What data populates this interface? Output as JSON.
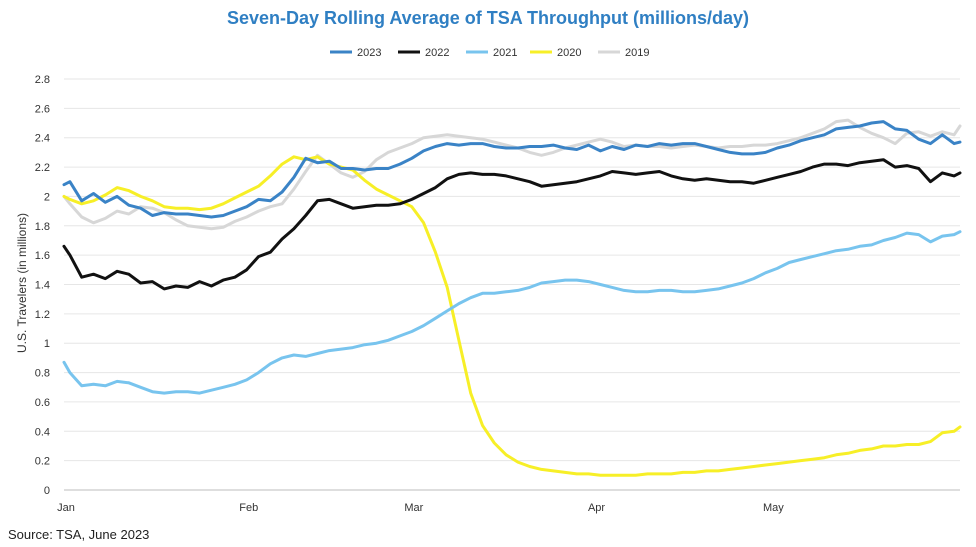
{
  "chart_data": {
    "type": "line",
    "title": "Seven-Day Rolling Average of TSA Throughput (millions/day)",
    "ylabel": "U.S. Travelers (in millions)",
    "xlabel": "",
    "source": "Source: TSA, June 2023",
    "ylim": [
      0,
      2.8
    ],
    "yticks": [
      0,
      0.2,
      0.4,
      0.6,
      0.8,
      1,
      1.2,
      1.4,
      1.6,
      1.8,
      2,
      2.2,
      2.4,
      2.6,
      2.8
    ],
    "xlim": [
      1,
      153
    ],
    "xticks": [
      {
        "label": "Jan",
        "day": 1
      },
      {
        "label": "Feb",
        "day": 32
      },
      {
        "label": "Mar",
        "day": 60
      },
      {
        "label": "Apr",
        "day": 91
      },
      {
        "label": "May",
        "day": 121
      }
    ],
    "grid": true,
    "legend_position": "top-center",
    "series": [
      {
        "name": "2023",
        "color": "#3a83c6",
        "x": [
          1,
          2,
          4,
          6,
          8,
          10,
          12,
          14,
          16,
          18,
          20,
          22,
          24,
          26,
          28,
          30,
          32,
          34,
          36,
          38,
          40,
          42,
          44,
          46,
          48,
          50,
          52,
          54,
          56,
          58,
          60,
          62,
          64,
          66,
          68,
          70,
          72,
          74,
          76,
          78,
          80,
          82,
          84,
          86,
          88,
          90,
          92,
          94,
          96,
          98,
          100,
          102,
          104,
          106,
          108,
          110,
          112,
          114,
          116,
          118,
          120,
          122,
          124,
          126,
          128,
          130,
          132,
          134,
          136,
          138,
          140,
          142,
          144,
          146,
          148,
          150,
          152,
          153
        ],
        "values": [
          2.08,
          2.1,
          1.97,
          2.02,
          1.96,
          2.0,
          1.94,
          1.92,
          1.87,
          1.89,
          1.88,
          1.88,
          1.87,
          1.86,
          1.87,
          1.9,
          1.93,
          1.98,
          1.97,
          2.03,
          2.13,
          2.26,
          2.23,
          2.24,
          2.19,
          2.19,
          2.18,
          2.19,
          2.19,
          2.22,
          2.26,
          2.31,
          2.34,
          2.36,
          2.35,
          2.36,
          2.36,
          2.34,
          2.33,
          2.33,
          2.34,
          2.34,
          2.35,
          2.33,
          2.32,
          2.35,
          2.31,
          2.34,
          2.32,
          2.35,
          2.34,
          2.36,
          2.35,
          2.36,
          2.36,
          2.34,
          2.32,
          2.3,
          2.29,
          2.29,
          2.3,
          2.33,
          2.35,
          2.38,
          2.4,
          2.42,
          2.46,
          2.47,
          2.48,
          2.5,
          2.51,
          2.46,
          2.45,
          2.39,
          2.36,
          2.42,
          2.36,
          2.37
        ]
      },
      {
        "name": "2022",
        "color": "#111111",
        "x": [
          1,
          2,
          4,
          6,
          8,
          10,
          12,
          14,
          16,
          18,
          20,
          22,
          24,
          26,
          28,
          30,
          32,
          34,
          36,
          38,
          40,
          42,
          44,
          46,
          48,
          50,
          52,
          54,
          56,
          58,
          60,
          62,
          64,
          66,
          68,
          70,
          72,
          74,
          76,
          78,
          80,
          82,
          84,
          86,
          88,
          90,
          92,
          94,
          96,
          98,
          100,
          102,
          104,
          106,
          108,
          110,
          112,
          114,
          116,
          118,
          120,
          122,
          124,
          126,
          128,
          130,
          132,
          134,
          136,
          138,
          140,
          142,
          144,
          146,
          148,
          150,
          152,
          153
        ],
        "values": [
          1.66,
          1.6,
          1.45,
          1.47,
          1.44,
          1.49,
          1.47,
          1.41,
          1.42,
          1.37,
          1.39,
          1.38,
          1.42,
          1.39,
          1.43,
          1.45,
          1.5,
          1.59,
          1.62,
          1.71,
          1.78,
          1.87,
          1.97,
          1.98,
          1.95,
          1.92,
          1.93,
          1.94,
          1.94,
          1.95,
          1.98,
          2.02,
          2.06,
          2.12,
          2.15,
          2.16,
          2.15,
          2.15,
          2.14,
          2.12,
          2.1,
          2.07,
          2.08,
          2.09,
          2.1,
          2.12,
          2.14,
          2.17,
          2.16,
          2.15,
          2.16,
          2.17,
          2.14,
          2.12,
          2.11,
          2.12,
          2.11,
          2.1,
          2.1,
          2.09,
          2.11,
          2.13,
          2.15,
          2.17,
          2.2,
          2.22,
          2.22,
          2.21,
          2.23,
          2.24,
          2.25,
          2.2,
          2.21,
          2.19,
          2.1,
          2.16,
          2.14,
          2.16
        ]
      },
      {
        "name": "2021",
        "color": "#78c4ee",
        "x": [
          1,
          2,
          4,
          6,
          8,
          10,
          12,
          14,
          16,
          18,
          20,
          22,
          24,
          26,
          28,
          30,
          32,
          34,
          36,
          38,
          40,
          42,
          44,
          46,
          48,
          50,
          52,
          54,
          56,
          58,
          60,
          62,
          64,
          66,
          68,
          70,
          72,
          74,
          76,
          78,
          80,
          82,
          84,
          86,
          88,
          90,
          92,
          94,
          96,
          98,
          100,
          102,
          104,
          106,
          108,
          110,
          112,
          114,
          116,
          118,
          120,
          122,
          124,
          126,
          128,
          130,
          132,
          134,
          136,
          138,
          140,
          142,
          144,
          146,
          148,
          150,
          152,
          153
        ],
        "values": [
          0.87,
          0.8,
          0.71,
          0.72,
          0.71,
          0.74,
          0.73,
          0.7,
          0.67,
          0.66,
          0.67,
          0.67,
          0.66,
          0.68,
          0.7,
          0.72,
          0.75,
          0.8,
          0.86,
          0.9,
          0.92,
          0.91,
          0.93,
          0.95,
          0.96,
          0.97,
          0.99,
          1.0,
          1.02,
          1.05,
          1.08,
          1.12,
          1.17,
          1.22,
          1.27,
          1.31,
          1.34,
          1.34,
          1.35,
          1.36,
          1.38,
          1.41,
          1.42,
          1.43,
          1.43,
          1.42,
          1.4,
          1.38,
          1.36,
          1.35,
          1.35,
          1.36,
          1.36,
          1.35,
          1.35,
          1.36,
          1.37,
          1.39,
          1.41,
          1.44,
          1.48,
          1.51,
          1.55,
          1.57,
          1.59,
          1.61,
          1.63,
          1.64,
          1.66,
          1.67,
          1.7,
          1.72,
          1.75,
          1.74,
          1.69,
          1.73,
          1.74,
          1.76
        ]
      },
      {
        "name": "2020",
        "color": "#f7ef27",
        "x": [
          1,
          2,
          4,
          6,
          8,
          10,
          12,
          14,
          16,
          18,
          20,
          22,
          24,
          26,
          28,
          30,
          32,
          34,
          36,
          38,
          40,
          42,
          44,
          46,
          48,
          50,
          52,
          54,
          56,
          58,
          60,
          62,
          64,
          66,
          68,
          70,
          72,
          74,
          76,
          78,
          80,
          82,
          84,
          86,
          88,
          90,
          92,
          94,
          96,
          98,
          100,
          102,
          104,
          106,
          108,
          110,
          112,
          114,
          116,
          118,
          120,
          122,
          124,
          126,
          128,
          130,
          132,
          134,
          136,
          138,
          140,
          142,
          144,
          146,
          148,
          150,
          152,
          153
        ],
        "values": [
          2.0,
          1.98,
          1.95,
          1.97,
          2.01,
          2.06,
          2.04,
          2.0,
          1.97,
          1.93,
          1.92,
          1.92,
          1.91,
          1.92,
          1.95,
          1.99,
          2.03,
          2.07,
          2.14,
          2.22,
          2.27,
          2.25,
          2.27,
          2.22,
          2.2,
          2.18,
          2.11,
          2.05,
          2.01,
          1.97,
          1.93,
          1.82,
          1.62,
          1.38,
          1.02,
          0.66,
          0.44,
          0.32,
          0.24,
          0.19,
          0.16,
          0.14,
          0.13,
          0.12,
          0.11,
          0.11,
          0.1,
          0.1,
          0.1,
          0.1,
          0.11,
          0.11,
          0.11,
          0.12,
          0.12,
          0.13,
          0.13,
          0.14,
          0.15,
          0.16,
          0.17,
          0.18,
          0.19,
          0.2,
          0.21,
          0.22,
          0.24,
          0.25,
          0.27,
          0.28,
          0.3,
          0.3,
          0.31,
          0.31,
          0.33,
          0.39,
          0.4,
          0.43
        ]
      },
      {
        "name": "2019",
        "color": "#d7d7d7",
        "x": [
          1,
          2,
          4,
          6,
          8,
          10,
          12,
          14,
          16,
          18,
          20,
          22,
          24,
          26,
          28,
          30,
          32,
          34,
          36,
          38,
          40,
          42,
          44,
          46,
          48,
          50,
          52,
          54,
          56,
          58,
          60,
          62,
          64,
          66,
          68,
          70,
          72,
          74,
          76,
          78,
          80,
          82,
          84,
          86,
          88,
          90,
          92,
          94,
          96,
          98,
          100,
          102,
          104,
          106,
          108,
          110,
          112,
          114,
          116,
          118,
          120,
          122,
          124,
          126,
          128,
          130,
          132,
          134,
          136,
          138,
          140,
          142,
          144,
          146,
          148,
          150,
          152,
          153
        ],
        "values": [
          2.0,
          1.95,
          1.86,
          1.82,
          1.85,
          1.9,
          1.88,
          1.93,
          1.92,
          1.89,
          1.84,
          1.8,
          1.79,
          1.78,
          1.79,
          1.83,
          1.86,
          1.9,
          1.93,
          1.95,
          2.05,
          2.17,
          2.28,
          2.22,
          2.16,
          2.13,
          2.17,
          2.25,
          2.3,
          2.33,
          2.36,
          2.4,
          2.41,
          2.42,
          2.41,
          2.4,
          2.39,
          2.37,
          2.35,
          2.33,
          2.3,
          2.28,
          2.3,
          2.33,
          2.35,
          2.37,
          2.39,
          2.37,
          2.34,
          2.35,
          2.34,
          2.34,
          2.33,
          2.34,
          2.35,
          2.34,
          2.33,
          2.34,
          2.34,
          2.35,
          2.35,
          2.36,
          2.38,
          2.4,
          2.43,
          2.46,
          2.51,
          2.52,
          2.47,
          2.43,
          2.4,
          2.36,
          2.43,
          2.44,
          2.41,
          2.44,
          2.42,
          2.48
        ]
      }
    ]
  }
}
